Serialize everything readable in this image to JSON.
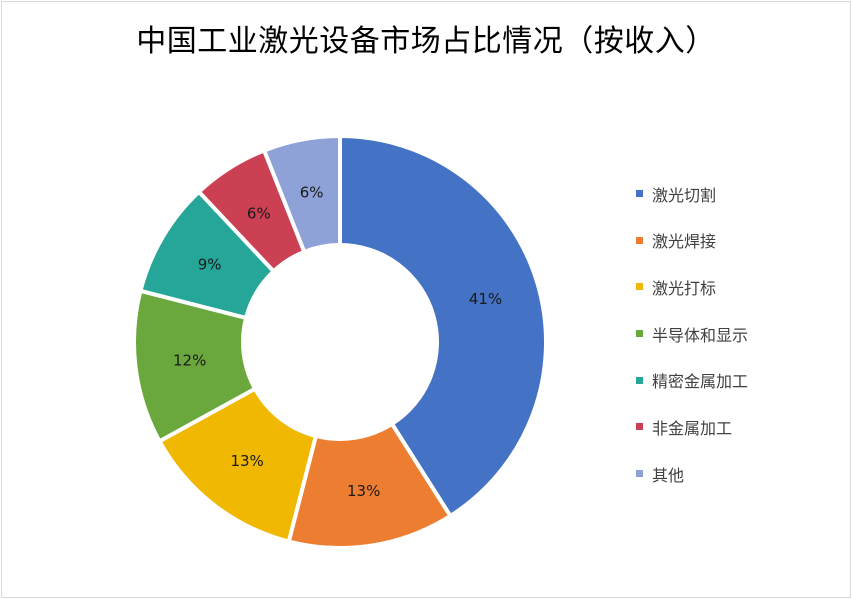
{
  "chart_data": {
    "type": "pie",
    "variant": "donut",
    "title": "中国工业激光设备市场占比情况（按收入）",
    "categories": [
      "激光切割",
      "激光焊接",
      "激光打标",
      "半导体和显示",
      "精密金属加工",
      "非金属加工",
      "其他"
    ],
    "values": [
      41,
      13,
      13,
      12,
      9,
      6,
      6
    ],
    "data_labels": [
      "41%",
      "13%",
      "13%",
      "12%",
      "9%",
      "6%",
      "6%"
    ],
    "colors": [
      "#4472c4",
      "#ed7d31",
      "#f0b800",
      "#6aa83e",
      "#26a698",
      "#cc4054",
      "#8fa2d8"
    ],
    "unit": "%",
    "legend_position": "right",
    "start_angle_deg": 0,
    "direction": "clockwise"
  },
  "legend": {
    "items": [
      {
        "label": "激光切割",
        "color": "#4472c4"
      },
      {
        "label": "激光焊接",
        "color": "#ed7d31"
      },
      {
        "label": "激光打标",
        "color": "#f0b800"
      },
      {
        "label": "半导体和显示",
        "color": "#6aa83e"
      },
      {
        "label": "精密金属加工",
        "color": "#26a698"
      },
      {
        "label": "非金属加工",
        "color": "#cc4054"
      },
      {
        "label": "其他",
        "color": "#8fa2d8"
      }
    ]
  }
}
